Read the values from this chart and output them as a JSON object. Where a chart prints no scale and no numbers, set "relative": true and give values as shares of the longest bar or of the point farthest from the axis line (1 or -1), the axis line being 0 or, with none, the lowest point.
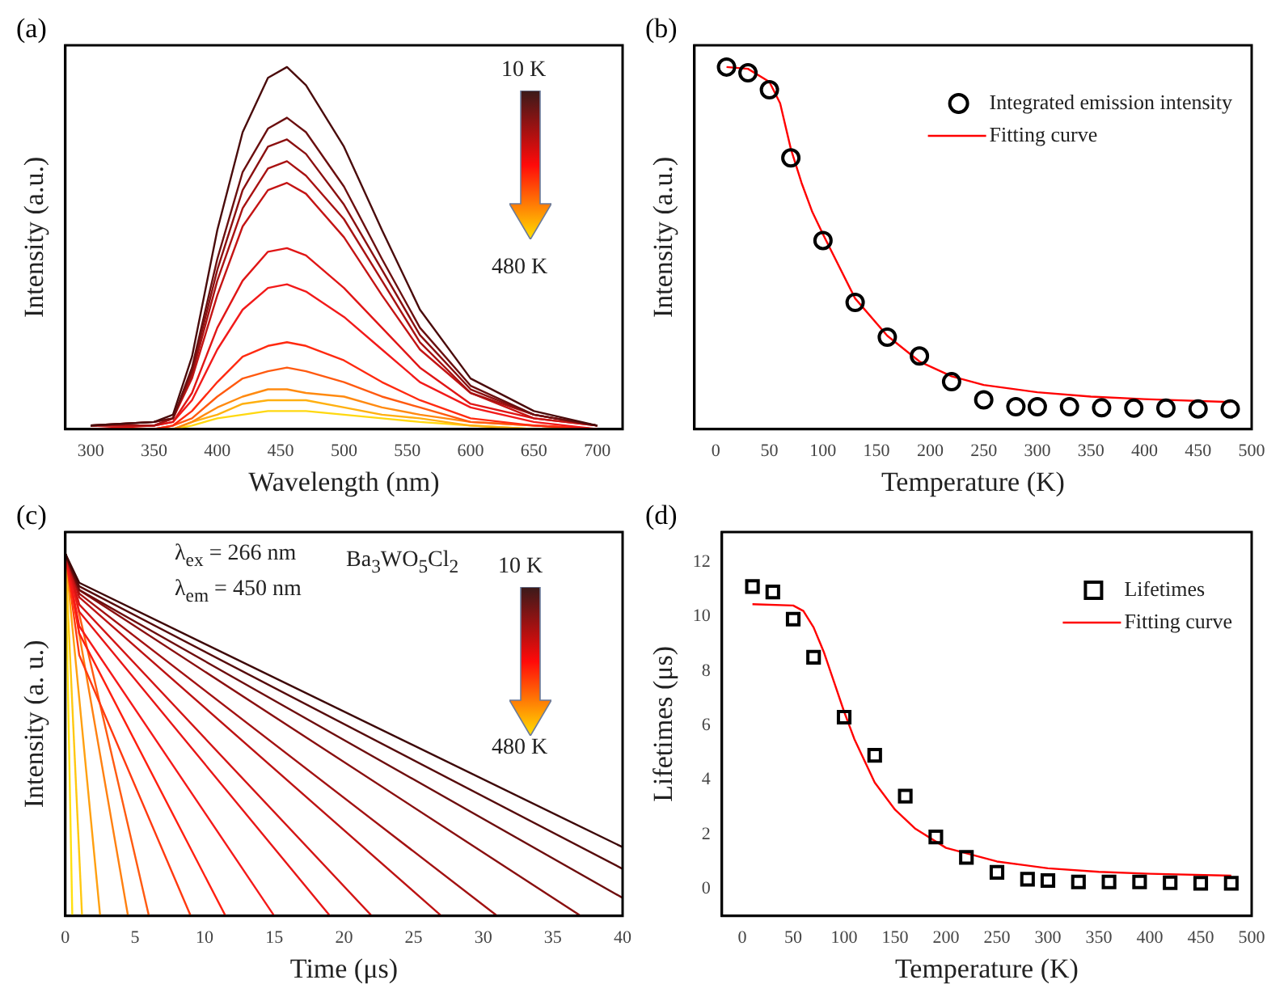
{
  "chart_data": [
    {
      "type": "line",
      "title": "(a)",
      "xlabel": "Wavelength (nm)",
      "ylabel": "Intensity (a.u.)",
      "relative": true,
      "tick_labels": "x",
      "marker": "none",
      "grid": false,
      "legend": false,
      "x": [
        300,
        350,
        365,
        380,
        400,
        420,
        440,
        455,
        470,
        500,
        530,
        560,
        600,
        650,
        700
      ],
      "xlim": [
        280,
        720
      ],
      "xticks": [
        300,
        350,
        400,
        450,
        500,
        550,
        600,
        650,
        700
      ],
      "annotations": [
        "10 K",
        "480 K"
      ],
      "series": [
        {
          "color": "#4a0b0b",
          "values": [
            0.01,
            0.02,
            0.04,
            0.2,
            0.55,
            0.82,
            0.97,
            1,
            0.95,
            0.78,
            0.55,
            0.33,
            0.14,
            0.05,
            0.01
          ]
        },
        {
          "color": "#6b0f0f",
          "values": [
            0.01,
            0.02,
            0.03,
            0.17,
            0.47,
            0.71,
            0.83,
            0.86,
            0.82,
            0.67,
            0.47,
            0.28,
            0.12,
            0.04,
            0.01
          ]
        },
        {
          "color": "#8b1010",
          "values": [
            0.01,
            0.02,
            0.03,
            0.16,
            0.44,
            0.66,
            0.78,
            0.8,
            0.76,
            0.62,
            0.44,
            0.26,
            0.11,
            0.04,
            0.01
          ]
        },
        {
          "color": "#a81212",
          "values": [
            0.01,
            0.01,
            0.03,
            0.15,
            0.41,
            0.61,
            0.72,
            0.74,
            0.7,
            0.58,
            0.41,
            0.24,
            0.1,
            0.04,
            0.01
          ]
        },
        {
          "color": "#c41414",
          "values": [
            0.01,
            0.01,
            0.03,
            0.14,
            0.37,
            0.56,
            0.66,
            0.68,
            0.65,
            0.53,
            0.37,
            0.22,
            0.1,
            0.03,
            0.01
          ]
        },
        {
          "color": "#e01616",
          "values": [
            0.01,
            0.01,
            0.02,
            0.1,
            0.28,
            0.41,
            0.49,
            0.5,
            0.48,
            0.39,
            0.28,
            0.17,
            0.07,
            0.03,
            0.01
          ]
        },
        {
          "color": "#f21a1a",
          "values": [
            0,
            0.01,
            0.02,
            0.08,
            0.22,
            0.33,
            0.39,
            0.4,
            0.38,
            0.31,
            0.22,
            0.13,
            0.06,
            0.02,
            0
          ]
        },
        {
          "color": "#ff2a10",
          "values": [
            0,
            0,
            0.01,
            0.05,
            0.13,
            0.2,
            0.23,
            0.24,
            0.23,
            0.19,
            0.13,
            0.08,
            0.03,
            0.01,
            0
          ]
        },
        {
          "color": "#ff5a10",
          "values": [
            0,
            0,
            0.01,
            0.03,
            0.09,
            0.14,
            0.16,
            0.17,
            0.16,
            0.13,
            0.09,
            0.06,
            0.02,
            0.01,
            0
          ]
        },
        {
          "color": "#ff8a10",
          "values": [
            0,
            0,
            0,
            0.02,
            0.06,
            0.09,
            0.11,
            0.11,
            0.1,
            0.09,
            0.06,
            0.04,
            0.02,
            0.01,
            0
          ]
        },
        {
          "color": "#ffb010",
          "values": [
            0,
            0,
            0,
            0.02,
            0.04,
            0.07,
            0.08,
            0.08,
            0.08,
            0.06,
            0.04,
            0.03,
            0.01,
            0,
            0
          ]
        },
        {
          "color": "#ffd810",
          "values": [
            0,
            0,
            0,
            0.01,
            0.03,
            0.04,
            0.05,
            0.05,
            0.05,
            0.04,
            0.03,
            0.02,
            0.01,
            0,
            0
          ]
        }
      ]
    },
    {
      "type": "scatter",
      "title": "(b)",
      "xlabel": "Temperature (K)",
      "ylabel": "Intensity (a.u.)",
      "relative": true,
      "tick_labels": "x",
      "marker": "circle",
      "grid": false,
      "legend": "top right",
      "xlim": [
        -20,
        500
      ],
      "xticks": [
        0,
        50,
        100,
        150,
        200,
        250,
        300,
        350,
        400,
        450,
        500
      ],
      "series": [
        {
          "name": "Integrated emission intensity",
          "color": "#000000",
          "x": [
            10,
            30,
            50,
            70,
            100,
            130,
            160,
            190,
            220,
            250,
            280,
            300,
            330,
            360,
            390,
            420,
            450,
            480
          ],
          "values": [
            1,
            0.984,
            0.937,
            0.749,
            0.521,
            0.35,
            0.254,
            0.202,
            0.131,
            0.081,
            0.062,
            0.062,
            0.062,
            0.059,
            0.058,
            0.058,
            0.056,
            0.056
          ]
        },
        {
          "name": "Fitting curve",
          "type": "line",
          "marker": "none",
          "color": "#ff0000",
          "x": [
            10,
            30,
            50,
            60,
            70,
            80,
            90,
            100,
            130,
            160,
            190,
            220,
            250,
            300,
            350,
            400,
            480
          ],
          "values": [
            1,
            0.995,
            0.959,
            0.9,
            0.774,
            0.68,
            0.6,
            0.538,
            0.361,
            0.258,
            0.187,
            0.146,
            0.122,
            0.102,
            0.09,
            0.083,
            0.075
          ]
        }
      ]
    },
    {
      "type": "line",
      "title": "(c)",
      "xlabel": "Time (μs)",
      "ylabel": "Intensity (a. u.)",
      "relative": true,
      "tick_labels": "x",
      "marker": "none",
      "grid": false,
      "legend": false,
      "xlim": [
        0,
        40
      ],
      "xticks": [
        0,
        5,
        10,
        15,
        20,
        25,
        30,
        35,
        40
      ],
      "annotations": [
        "λ$_{ex}$ = 266 nm",
        "λ$_{em}$ = 450 nm",
        "Ba$_{3}$WO$_{5}$Cl$_{2}$",
        "10 K",
        "480 K"
      ],
      "series": [
        {
          "color": "#3d0808",
          "x": [
            0,
            1,
            40
          ],
          "values": [
            1,
            0.92,
            0.19
          ]
        },
        {
          "color": "#560b0b",
          "x": [
            0,
            1,
            40
          ],
          "values": [
            1,
            0.91,
            0.13
          ]
        },
        {
          "color": "#6e0e0e",
          "x": [
            0,
            1,
            40
          ],
          "values": [
            1,
            0.9,
            0.05
          ]
        },
        {
          "color": "#8a1010",
          "x": [
            0,
            1,
            37
          ],
          "values": [
            1,
            0.9,
            0
          ]
        },
        {
          "color": "#a31212",
          "x": [
            0,
            1,
            31
          ],
          "values": [
            1,
            0.89,
            0
          ]
        },
        {
          "color": "#bd1313",
          "x": [
            0,
            1,
            27
          ],
          "values": [
            1,
            0.88,
            0
          ]
        },
        {
          "color": "#d41515",
          "x": [
            0,
            1,
            22
          ],
          "values": [
            1,
            0.86,
            0
          ]
        },
        {
          "color": "#e81717",
          "x": [
            0,
            1,
            19
          ],
          "values": [
            1,
            0.84,
            0
          ]
        },
        {
          "color": "#f51a1a",
          "x": [
            0,
            1,
            15
          ],
          "values": [
            1,
            0.8,
            0
          ]
        },
        {
          "color": "#ff2010",
          "x": [
            0,
            1,
            11.5
          ],
          "values": [
            1,
            0.78,
            0
          ]
        },
        {
          "color": "#ff3a10",
          "x": [
            0,
            1,
            9
          ],
          "values": [
            1,
            0.72,
            0
          ]
        },
        {
          "color": "#ff5a10",
          "x": [
            0,
            6
          ],
          "values": [
            1,
            0
          ]
        },
        {
          "color": "#ff8010",
          "x": [
            0,
            4.5
          ],
          "values": [
            1,
            0
          ]
        },
        {
          "color": "#ffa010",
          "x": [
            0,
            2.5
          ],
          "values": [
            1,
            0
          ]
        },
        {
          "color": "#ffc810",
          "x": [
            0,
            1.2
          ],
          "values": [
            1,
            0
          ]
        },
        {
          "color": "#ffe010",
          "x": [
            0,
            0.5
          ],
          "values": [
            1,
            0
          ]
        }
      ]
    },
    {
      "type": "scatter",
      "title": "(d)",
      "xlabel": "Temperature (K)",
      "ylabel": "Lifetimes (μs)",
      "marker": "square",
      "grid": false,
      "legend": "top right",
      "xlim": [
        -20,
        500
      ],
      "xticks": [
        0,
        50,
        100,
        150,
        200,
        250,
        300,
        350,
        400,
        450,
        500
      ],
      "ylim": [
        -1,
        13.1
      ],
      "yticks": [
        0,
        2,
        4,
        6,
        8,
        10,
        12
      ],
      "series": [
        {
          "name": "Lifetimes",
          "color": "#000000",
          "x": [
            10,
            30,
            50,
            70,
            100,
            130,
            160,
            190,
            220,
            250,
            280,
            300,
            330,
            360,
            390,
            420,
            450,
            480
          ],
          "values": [
            11.1,
            10.9,
            9.9,
            8.5,
            6.3,
            4.9,
            3.4,
            1.9,
            1.15,
            0.6,
            0.35,
            0.3,
            0.25,
            0.25,
            0.25,
            0.22,
            0.2,
            0.2
          ]
        },
        {
          "name": "Fitting curve",
          "type": "line",
          "marker": "none",
          "color": "#ff0000",
          "x": [
            10,
            50,
            60,
            70,
            80,
            90,
            100,
            110,
            130,
            150,
            170,
            200,
            250,
            300,
            350,
            400,
            480
          ],
          "values": [
            10.45,
            10.4,
            10.2,
            9.6,
            8.7,
            7.6,
            6.5,
            5.5,
            3.9,
            2.9,
            2.2,
            1.5,
            1,
            0.75,
            0.62,
            0.55,
            0.48
          ]
        }
      ]
    }
  ]
}
